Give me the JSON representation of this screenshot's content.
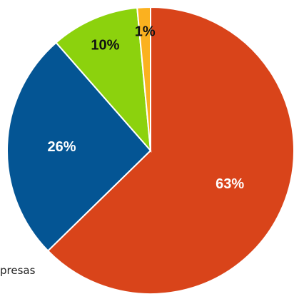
{
  "chart_data": {
    "type": "pie",
    "title": "",
    "start_angle_deg": 0,
    "direction": "clockwise",
    "slices": [
      {
        "value": 63,
        "label": "63%",
        "color": "#D9441A",
        "label_color": "#ffffff"
      },
      {
        "value": 26,
        "label": "26%",
        "color": "#045594",
        "label_color": "#ffffff"
      },
      {
        "value": 10,
        "label": "10%",
        "color": "#8CD20D",
        "label_color": "#111111"
      },
      {
        "value": 1.5,
        "label": "1%",
        "color": "#FBB11F",
        "label_color": "#111111"
      }
    ]
  },
  "legend": {
    "fragment_text": "presas"
  }
}
